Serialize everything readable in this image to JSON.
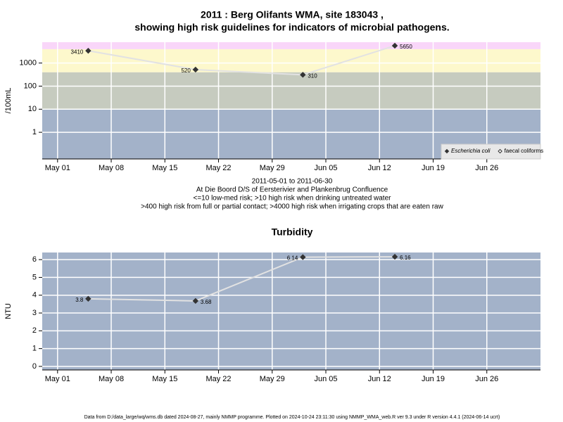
{
  "chart_data": [
    {
      "type": "line",
      "title": "2011 : Berg Olifants WMA, site 183043 ,",
      "subtitle": "showing high risk guidelines for indicators of microbial pathogens.",
      "ylabel": "/100mL",
      "x": [
        "2011-05-05",
        "2011-05-19",
        "2011-06-02",
        "2011-06-14"
      ],
      "xlim": [
        "2011-04-29",
        "2011-07-03"
      ],
      "xticks": [
        {
          "value": "2011-05-01",
          "label": "May 01"
        },
        {
          "value": "2011-05-08",
          "label": "May 08"
        },
        {
          "value": "2011-05-15",
          "label": "May 15"
        },
        {
          "value": "2011-05-22",
          "label": "May 22"
        },
        {
          "value": "2011-05-29",
          "label": "May 29"
        },
        {
          "value": "2011-06-05",
          "label": "Jun 05"
        },
        {
          "value": "2011-06-12",
          "label": "Jun 12"
        },
        {
          "value": "2011-06-19",
          "label": "Jun 19"
        },
        {
          "value": "2011-06-26",
          "label": "Jun 26"
        }
      ],
      "ylog": true,
      "ylim": [
        0.07,
        8000
      ],
      "yticks": [
        1,
        10,
        100,
        1000
      ],
      "thresholds": [
        10,
        400,
        4000
      ],
      "band_colors": [
        "#a3b2c9",
        "#c6cbbf",
        "#fdf8cc",
        "#f9d6f9"
      ],
      "grid": true,
      "legend": "bottom-right",
      "series": [
        {
          "name": "Escherichia coli",
          "color": "#e2e2e2",
          "marker": "filled",
          "values": [
            3410,
            520,
            310,
            5650
          ]
        },
        {
          "name": "faecal coliforms",
          "color": "#e2e2e2",
          "marker": "open",
          "values": [
            null,
            null,
            null,
            null
          ]
        }
      ],
      "notes": [
        "2011-05-01 to 2011-06-30",
        "At Die Boord D/S of Eersterivier and Plankenbrug Confluence",
        "<=10 low-med risk; >10 high risk when drinking untreated water",
        ">400 high risk from full or partial contact; >4000 high risk when irrigating crops that are eaten raw"
      ]
    },
    {
      "type": "line",
      "title": "Turbidity",
      "ylabel": "NTU",
      "x": [
        "2011-05-05",
        "2011-05-19",
        "2011-06-02",
        "2011-06-14"
      ],
      "xlim": [
        "2011-04-29",
        "2011-07-03"
      ],
      "xticks": [
        {
          "value": "2011-05-01",
          "label": "May 01"
        },
        {
          "value": "2011-05-08",
          "label": "May 08"
        },
        {
          "value": "2011-05-15",
          "label": "May 15"
        },
        {
          "value": "2011-05-22",
          "label": "May 22"
        },
        {
          "value": "2011-05-29",
          "label": "May 29"
        },
        {
          "value": "2011-06-05",
          "label": "Jun 05"
        },
        {
          "value": "2011-06-12",
          "label": "Jun 12"
        },
        {
          "value": "2011-06-19",
          "label": "Jun 19"
        },
        {
          "value": "2011-06-26",
          "label": "Jun 26"
        }
      ],
      "ylim": [
        -0.2,
        6.4
      ],
      "yticks": [
        0,
        1,
        2,
        3,
        4,
        5,
        6
      ],
      "band_colors": [
        "#a3b2c9"
      ],
      "grid": true,
      "series": [
        {
          "color": "#e2e2e2",
          "marker": "filled",
          "values": [
            3.8,
            3.68,
            6.14,
            6.16
          ],
          "value_labels": [
            "3.8",
            "3.68",
            "6.14",
            "6.16"
          ]
        }
      ]
    }
  ],
  "footer": "Data from D:/data_large/wq/wms.db dated 2024-08-27, mainly NMMP programme. Plotted on 2024-10-24 23:11:30 using NMMP_WMA_web.R ver 9.3 under R version 4.4.1 (2024-06-14 ucrt)"
}
